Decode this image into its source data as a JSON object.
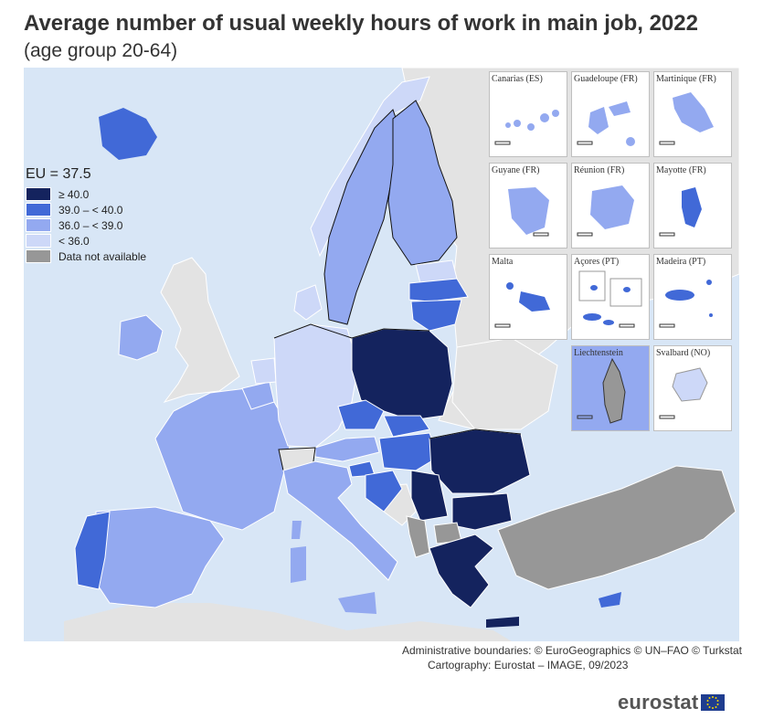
{
  "title": "Average number of usual weekly hours of work in main job, 2022",
  "subtitle": "(age group 20-64)",
  "colors": {
    "c40": "#14235e",
    "c39": "#4169d7",
    "c36": "#93a9f0",
    "clt36": "#cdd8f8",
    "na": "#979797",
    "nonEU": "#e3e3e3",
    "sea": "#d8e6f6",
    "border": "#ffffff",
    "euBorder": "#111111"
  },
  "legend": {
    "title": "EU = 37.5",
    "items": [
      {
        "label": "≥ 40.0",
        "color": "#14235e"
      },
      {
        "label": "39.0 – < 40.0",
        "color": "#4169d7"
      },
      {
        "label": "36.0 – < 39.0",
        "color": "#93a9f0"
      },
      {
        "label": "< 36.0",
        "color": "#cdd8f8"
      },
      {
        "label": "Data not available",
        "color": "#979797"
      }
    ]
  },
  "insets": [
    {
      "label": "Canarias (ES)",
      "scale": "0   100",
      "color": "#93a9f0"
    },
    {
      "label": "Guadeloupe (FR)",
      "scale": "0   20",
      "color": "#93a9f0"
    },
    {
      "label": "Martinique (FR)",
      "scale": "0   20",
      "color": "#93a9f0"
    },
    {
      "label": "Guyane (FR)",
      "scale": "0   100",
      "color": "#93a9f0"
    },
    {
      "label": "Réunion (FR)",
      "scale": "0   20",
      "color": "#93a9f0"
    },
    {
      "label": "Mayotte (FR)",
      "scale": "0   10",
      "color": "#4169d7"
    },
    {
      "label": "Malta",
      "scale": "0   10",
      "color": "#4169d7"
    },
    {
      "label": "Açores (PT)",
      "scale": "0   50",
      "color": "#4169d7"
    },
    {
      "label": "Madeira (PT)",
      "scale": "0   20",
      "color": "#4169d7"
    },
    {
      "label": "Liechtenstein",
      "scale": "0   5",
      "color": "#979797"
    },
    {
      "label": "Svalbard (NO)",
      "scale": "0   100",
      "color": "#cdd8f8"
    }
  ],
  "credits": {
    "boundaries": "Administrative boundaries: © EuroGeographics © UN–FAO © Turkstat",
    "cartography": "Cartography: Eurostat – IMAGE, 09/2023"
  },
  "logo": {
    "text": "eurostat"
  }
}
